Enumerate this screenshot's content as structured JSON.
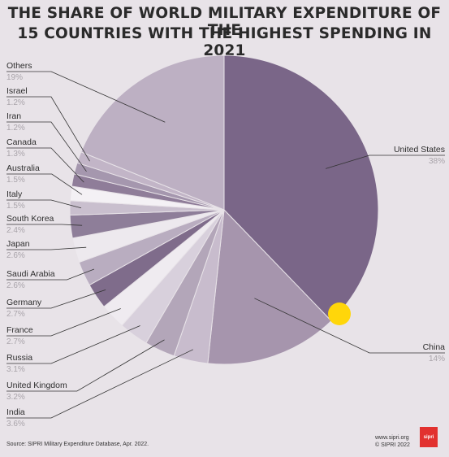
{
  "title_lines": [
    "THE SHARE OF WORLD MILITARY EXPENDITURE OF THE",
    "15 COUNTRIES WITH THE HIGHEST SPENDING IN 2021"
  ],
  "footer": {
    "source": "Source: SIPRI Military Expenditure Database, Apr. 2022.",
    "site": "www.sipri.org",
    "copyright": "© SIPRI 2022",
    "logo": "sipri"
  },
  "colors": {
    "background": "#e8e3e8",
    "united_states": "#7a6688",
    "china": "#a695ad",
    "label_name": "#2e2e2e",
    "label_value": "#a9a4aa",
    "highlight": "#ffd60a"
  },
  "chart_data": {
    "type": "pie",
    "unit": "%",
    "slices": [
      {
        "name": "United States",
        "label": "38%",
        "value": 38,
        "color": "#7a6688"
      },
      {
        "name": "China",
        "label": "14%",
        "value": 14,
        "color": "#a695ad"
      },
      {
        "name": "India",
        "label": "3.6%",
        "value": 3.6,
        "color": "#c8bccd"
      },
      {
        "name": "United Kingdom",
        "label": "3.2%",
        "value": 3.2,
        "color": "#b3a6b9"
      },
      {
        "name": "Russia",
        "label": "3.1%",
        "value": 3.1,
        "color": "#d8d0dc"
      },
      {
        "name": "France",
        "label": "2.7%",
        "value": 2.7,
        "color": "#efebf0"
      },
      {
        "name": "Germany",
        "label": "2.7%",
        "value": 2.7,
        "color": "#7f6c8b"
      },
      {
        "name": "Saudi Arabia",
        "label": "2.6%",
        "value": 2.6,
        "color": "#b9adc0"
      },
      {
        "name": "Japan",
        "label": "2.6%",
        "value": 2.6,
        "color": "#ede9ee"
      },
      {
        "name": "South Korea",
        "label": "2.4%",
        "value": 2.4,
        "color": "#8e7e99"
      },
      {
        "name": "Italy",
        "label": "1.5%",
        "value": 1.5,
        "color": "#c9bfce"
      },
      {
        "name": "Australia",
        "label": "1.5%",
        "value": 1.5,
        "color": "#f4f1f5"
      },
      {
        "name": "Canada",
        "label": "1.3%",
        "value": 1.3,
        "color": "#8f7d99"
      },
      {
        "name": "Iran",
        "label": "1.2%",
        "value": 1.2,
        "color": "#a597ae"
      },
      {
        "name": "Israel",
        "label": "1.2%",
        "value": 1.2,
        "color": "#c2b5c7"
      },
      {
        "name": "Others",
        "label": "19%",
        "value": 19,
        "color": "#bdb0c3"
      }
    ]
  }
}
